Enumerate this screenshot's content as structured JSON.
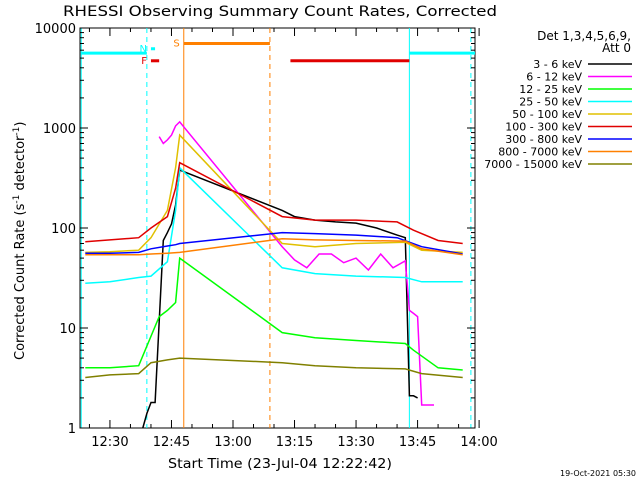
{
  "chart_data": {
    "type": "line",
    "title": "RHESSI Observing Summary Count Rates, Corrected",
    "xlabel": "Start Time (23-Jul-04 12:22:42)",
    "ylabel": "Corrected Count Rate (s⁻¹ detector⁻¹)",
    "ylabel_parts": [
      "Corrected Count Rate (s",
      "-1",
      " detector",
      "-1",
      ")"
    ],
    "footer": "19-Oct-2021 05:30",
    "xscale": "time",
    "xlim": [
      "12:22:42",
      "13:59:00"
    ],
    "xticks": [
      "12:30",
      "12:45",
      "13:00",
      "13:15",
      "13:30",
      "13:45",
      "14:00"
    ],
    "yscale": "log",
    "ylim": [
      1,
      10000
    ],
    "yticks": [
      "1",
      "10",
      "100",
      "1000",
      "10000"
    ],
    "legend": {
      "placement": "right",
      "header_lines": [
        "Det 1,3,4,5,6,9,",
        "Att 0"
      ]
    },
    "series": [
      {
        "name": "3 - 6 keV",
        "color": "#000000",
        "points": [
          [
            "12:38",
            1
          ],
          [
            "12:39",
            1.4
          ],
          [
            "12:40",
            1.8
          ],
          [
            "12:41",
            1.8
          ],
          [
            "12:43",
            75
          ],
          [
            "12:44",
            90
          ],
          [
            "12:45",
            110
          ],
          [
            "12:46",
            170
          ],
          [
            "12:47",
            380
          ],
          [
            "13:12",
            150
          ],
          [
            "13:15",
            130
          ],
          [
            "13:20",
            120
          ],
          [
            "13:25",
            115
          ],
          [
            "13:30",
            112
          ],
          [
            "13:35",
            100
          ],
          [
            "13:40",
            85
          ],
          [
            "13:42",
            80
          ],
          [
            "13:43",
            2.1
          ],
          [
            "13:44",
            2.1
          ],
          [
            "13:45",
            2.0
          ]
        ]
      },
      {
        "name": "6 - 12 keV",
        "color": "#ff00ff",
        "points": [
          [
            "12:42",
            820
          ],
          [
            "12:43",
            700
          ],
          [
            "12:44",
            760
          ],
          [
            "12:45",
            850
          ],
          [
            "12:46",
            1050
          ],
          [
            "12:47",
            1150
          ],
          [
            "13:12",
            65
          ],
          [
            "13:15",
            48
          ],
          [
            "13:18",
            40
          ],
          [
            "13:21",
            55
          ],
          [
            "13:24",
            55
          ],
          [
            "13:27",
            45
          ],
          [
            "13:30",
            50
          ],
          [
            "13:33",
            38
          ],
          [
            "13:36",
            55
          ],
          [
            "13:39",
            40
          ],
          [
            "13:42",
            47
          ],
          [
            "13:43",
            15
          ],
          [
            "13:44",
            14
          ],
          [
            "13:45",
            13
          ],
          [
            "13:46",
            1.7
          ],
          [
            "13:49",
            1.7
          ]
        ]
      },
      {
        "name": "12 - 25 keV",
        "color": "#00ff00",
        "points": [
          [
            "12:24",
            4
          ],
          [
            "12:30",
            4
          ],
          [
            "12:37",
            4.2
          ],
          [
            "12:42",
            13
          ],
          [
            "12:44",
            15
          ],
          [
            "12:46",
            18
          ],
          [
            "12:47",
            50
          ],
          [
            "13:12",
            9
          ],
          [
            "13:20",
            8
          ],
          [
            "13:30",
            7.5
          ],
          [
            "13:42",
            7
          ],
          [
            "13:44",
            6
          ],
          [
            "13:50",
            4
          ],
          [
            "13:56",
            3.8
          ]
        ]
      },
      {
        "name": "25 - 50 keV",
        "color": "#00ffff",
        "points": [
          [
            "12:24",
            28
          ],
          [
            "12:30",
            29
          ],
          [
            "12:37",
            32
          ],
          [
            "12:40",
            33
          ],
          [
            "12:44",
            46
          ],
          [
            "12:46",
            150
          ],
          [
            "12:47",
            400
          ],
          [
            "13:12",
            40
          ],
          [
            "13:20",
            35
          ],
          [
            "13:30",
            33
          ],
          [
            "13:42",
            32
          ],
          [
            "13:46",
            29
          ],
          [
            "13:56",
            29
          ]
        ]
      },
      {
        "name": "50 - 100 keV",
        "color": "#e0c000",
        "points": [
          [
            "12:24",
            57
          ],
          [
            "12:30",
            58
          ],
          [
            "12:37",
            60
          ],
          [
            "12:40",
            80
          ],
          [
            "12:44",
            150
          ],
          [
            "12:46",
            400
          ],
          [
            "12:47",
            850
          ],
          [
            "13:12",
            70
          ],
          [
            "13:20",
            65
          ],
          [
            "13:30",
            70
          ],
          [
            "13:42",
            72
          ],
          [
            "13:46",
            60
          ],
          [
            "13:56",
            57
          ]
        ]
      },
      {
        "name": "100 - 300 keV",
        "color": "#e00000",
        "points": [
          [
            "12:24",
            73
          ],
          [
            "12:30",
            76
          ],
          [
            "12:37",
            80
          ],
          [
            "12:40",
            100
          ],
          [
            "12:44",
            130
          ],
          [
            "12:46",
            250
          ],
          [
            "12:47",
            450
          ],
          [
            "13:12",
            130
          ],
          [
            "13:20",
            120
          ],
          [
            "13:30",
            120
          ],
          [
            "13:40",
            115
          ],
          [
            "13:44",
            95
          ],
          [
            "13:50",
            75
          ],
          [
            "13:56",
            70
          ]
        ]
      },
      {
        "name": "300 - 800 keV",
        "color": "#0000ff",
        "points": [
          [
            "12:24",
            56
          ],
          [
            "12:30",
            56
          ],
          [
            "12:37",
            57
          ],
          [
            "12:40",
            62
          ],
          [
            "12:44",
            66
          ],
          [
            "12:46",
            68
          ],
          [
            "12:47",
            70
          ],
          [
            "13:12",
            90
          ],
          [
            "13:20",
            88
          ],
          [
            "13:30",
            85
          ],
          [
            "13:40",
            80
          ],
          [
            "13:46",
            65
          ],
          [
            "13:56",
            55
          ]
        ]
      },
      {
        "name": "800 - 7000 keV",
        "color": "#ff8000",
        "points": [
          [
            "12:24",
            54
          ],
          [
            "12:30",
            54
          ],
          [
            "12:37",
            54
          ],
          [
            "12:40",
            55
          ],
          [
            "12:44",
            56
          ],
          [
            "12:47",
            57
          ],
          [
            "13:12",
            78
          ],
          [
            "13:20",
            76
          ],
          [
            "13:30",
            75
          ],
          [
            "13:42",
            74
          ],
          [
            "13:46",
            62
          ],
          [
            "13:56",
            54
          ]
        ]
      },
      {
        "name": "7000 - 15000 keV",
        "color": "#808000",
        "points": [
          [
            "12:24",
            3.2
          ],
          [
            "12:30",
            3.4
          ],
          [
            "12:37",
            3.5
          ],
          [
            "12:40",
            4.5
          ],
          [
            "12:44",
            4.8
          ],
          [
            "12:47",
            5.0
          ],
          [
            "13:12",
            4.5
          ],
          [
            "13:20",
            4.2
          ],
          [
            "13:30",
            4.0
          ],
          [
            "13:42",
            3.9
          ],
          [
            "13:46",
            3.5
          ],
          [
            "13:56",
            3.2
          ]
        ]
      }
    ],
    "annotations": [
      {
        "label": "F",
        "color": "#e00000",
        "level": 4700,
        "x_start": "12:40",
        "x_end": "12:42"
      },
      {
        "label": "N",
        "color": "#00ffff",
        "level": 6200,
        "x_start": "12:40",
        "x_end": "12:41"
      },
      {
        "label": "S",
        "color": "#ff8000",
        "level": 7000,
        "x_start": "12:48",
        "x_end": "13:09"
      },
      {
        "label": "",
        "color": "#e00000",
        "level": 4700,
        "x_start": "13:14",
        "x_end": "13:43"
      }
    ],
    "observation_bars": [
      {
        "color": "#00ffff",
        "level": 5600,
        "x_start": "12:23",
        "x_end": "12:39"
      },
      {
        "color": "#00ffff",
        "level": 5600,
        "x_start": "13:43",
        "x_end": "13:59"
      }
    ],
    "vertical_markers": [
      {
        "time": "12:23",
        "color": "#00ffff",
        "style": "solid"
      },
      {
        "time": "12:39",
        "color": "#00ffff",
        "style": "dashed"
      },
      {
        "time": "12:48",
        "color": "#ff8000",
        "style": "solid"
      },
      {
        "time": "13:09",
        "color": "#ff8000",
        "style": "dashed"
      },
      {
        "time": "13:43",
        "color": "#00ffff",
        "style": "solid"
      },
      {
        "time": "13:58",
        "color": "#00ffff",
        "style": "dashed"
      }
    ]
  }
}
